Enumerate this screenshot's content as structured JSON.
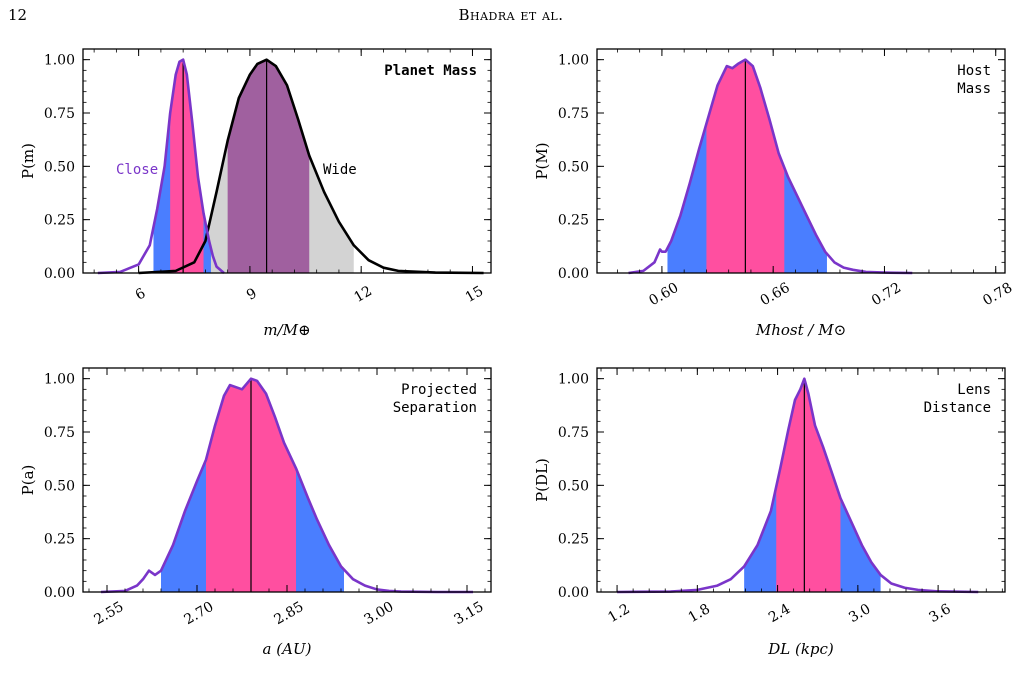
{
  "header": {
    "page_number": "12",
    "running_head": "Bhadra et al."
  },
  "colors": {
    "magenta": "#ff4fa0",
    "blue": "#4a7eff",
    "purple_line": "#7a35c9",
    "gray_fill": "#d3d3d3",
    "overlap_fill": "#a0609f",
    "black": "#000000"
  },
  "chart_data": [
    {
      "type": "area",
      "title": "Planet Mass",
      "xlabel": "m/M⊕",
      "ylabel": "P(m)",
      "xlim": [
        4.5,
        15.5
      ],
      "ylim": [
        0,
        1.05
      ],
      "xticks": [
        6,
        9,
        12,
        15
      ],
      "yticks": [
        0.0,
        0.25,
        0.5,
        0.75,
        1.0
      ],
      "series": [
        {
          "name": "Close",
          "color": "#7a35c9",
          "median": 7.2,
          "ci68": [
            6.85,
            7.75
          ],
          "ci95": [
            6.4,
            7.95
          ],
          "x": [
            4.9,
            5.5,
            6.0,
            6.3,
            6.5,
            6.7,
            6.85,
            7.0,
            7.1,
            7.2,
            7.3,
            7.45,
            7.6,
            7.75,
            7.9,
            8.0,
            8.1,
            8.3
          ],
          "y": [
            0.0,
            0.005,
            0.04,
            0.13,
            0.3,
            0.5,
            0.75,
            0.93,
            0.99,
            1.0,
            0.93,
            0.7,
            0.45,
            0.28,
            0.15,
            0.08,
            0.03,
            0.0
          ]
        },
        {
          "name": "Wide",
          "color": "#000000",
          "median": 9.45,
          "ci68": [
            8.4,
            10.6
          ],
          "ci95": [
            7.9,
            11.8
          ],
          "x": [
            6.0,
            7.0,
            7.5,
            7.8,
            8.1,
            8.4,
            8.7,
            9.0,
            9.2,
            9.45,
            9.7,
            10.0,
            10.3,
            10.6,
            11.0,
            11.4,
            11.8,
            12.2,
            12.6,
            13.0,
            14.0,
            15.3
          ],
          "y": [
            0.0,
            0.01,
            0.05,
            0.15,
            0.38,
            0.62,
            0.82,
            0.93,
            0.98,
            1.0,
            0.97,
            0.88,
            0.72,
            0.55,
            0.38,
            0.24,
            0.13,
            0.06,
            0.025,
            0.01,
            0.002,
            0.0
          ]
        }
      ],
      "annotations": [
        "Close",
        "Wide"
      ]
    },
    {
      "type": "area",
      "title": "Host Mass",
      "xlabel": "Mhost / M⊙",
      "ylabel": "P(M)",
      "xlim": [
        0.565,
        0.785
      ],
      "ylim": [
        0,
        1.05
      ],
      "xticks": [
        0.6,
        0.66,
        0.72,
        0.78
      ],
      "yticks": [
        0.0,
        0.25,
        0.5,
        0.75,
        1.0
      ],
      "median": 0.645,
      "ci68": [
        0.624,
        0.666
      ],
      "ci95": [
        0.603,
        0.689
      ],
      "x": [
        0.582,
        0.59,
        0.596,
        0.599,
        0.6,
        0.602,
        0.605,
        0.61,
        0.615,
        0.62,
        0.625,
        0.63,
        0.635,
        0.638,
        0.641,
        0.645,
        0.649,
        0.653,
        0.658,
        0.663,
        0.668,
        0.673,
        0.678,
        0.683,
        0.688,
        0.693,
        0.698,
        0.703,
        0.71,
        0.72,
        0.735
      ],
      "y": [
        0.0,
        0.01,
        0.05,
        0.11,
        0.1,
        0.1,
        0.15,
        0.27,
        0.42,
        0.58,
        0.73,
        0.88,
        0.97,
        0.96,
        0.98,
        1.0,
        0.97,
        0.87,
        0.72,
        0.56,
        0.45,
        0.36,
        0.27,
        0.18,
        0.1,
        0.05,
        0.025,
        0.015,
        0.005,
        0.002,
        0.0
      ]
    },
    {
      "type": "area",
      "title": "Projected Separation",
      "xlabel": "a (AU)",
      "ylabel": "P(a)",
      "xlim": [
        2.51,
        3.19
      ],
      "ylim": [
        0,
        1.05
      ],
      "xticks": [
        2.55,
        2.7,
        2.85,
        3.0,
        3.15
      ],
      "yticks": [
        0.0,
        0.25,
        0.5,
        0.75,
        1.0
      ],
      "median": 2.79,
      "ci68": [
        2.715,
        2.865
      ],
      "ci95": [
        2.64,
        2.945
      ],
      "x": [
        2.54,
        2.58,
        2.6,
        2.61,
        2.62,
        2.63,
        2.64,
        2.66,
        2.68,
        2.7,
        2.715,
        2.73,
        2.745,
        2.755,
        2.765,
        2.775,
        2.79,
        2.8,
        2.815,
        2.83,
        2.845,
        2.865,
        2.885,
        2.9,
        2.92,
        2.94,
        2.96,
        2.98,
        3.0,
        3.02,
        3.04,
        3.1,
        3.16
      ],
      "y": [
        0.0,
        0.005,
        0.03,
        0.06,
        0.1,
        0.08,
        0.1,
        0.22,
        0.38,
        0.52,
        0.62,
        0.78,
        0.92,
        0.97,
        0.96,
        0.95,
        1.0,
        0.99,
        0.93,
        0.82,
        0.7,
        0.58,
        0.44,
        0.34,
        0.22,
        0.12,
        0.06,
        0.03,
        0.012,
        0.005,
        0.002,
        0.0,
        0.0
      ]
    },
    {
      "type": "area",
      "title": "Lens Distance",
      "xlabel": "DL (kpc)",
      "ylabel": "P(DL)",
      "xlim": [
        1.05,
        4.1
      ],
      "ylim": [
        0,
        1.05
      ],
      "xticks": [
        1.2,
        1.8,
        2.4,
        3.0,
        3.6
      ],
      "yticks": [
        0.0,
        0.25,
        0.5,
        0.75,
        1.0
      ],
      "median": 2.6,
      "ci68": [
        2.39,
        2.87
      ],
      "ci95": [
        2.15,
        3.17
      ],
      "x": [
        1.2,
        1.6,
        1.8,
        1.95,
        2.05,
        2.15,
        2.25,
        2.35,
        2.42,
        2.48,
        2.53,
        2.57,
        2.6,
        2.63,
        2.68,
        2.74,
        2.8,
        2.87,
        2.95,
        3.03,
        3.1,
        3.17,
        3.25,
        3.35,
        3.45,
        3.6,
        3.9
      ],
      "y": [
        0.0,
        0.002,
        0.01,
        0.03,
        0.06,
        0.12,
        0.22,
        0.38,
        0.58,
        0.76,
        0.9,
        0.95,
        1.0,
        0.93,
        0.78,
        0.68,
        0.57,
        0.44,
        0.33,
        0.22,
        0.14,
        0.08,
        0.04,
        0.02,
        0.01,
        0.003,
        0.0
      ]
    }
  ]
}
